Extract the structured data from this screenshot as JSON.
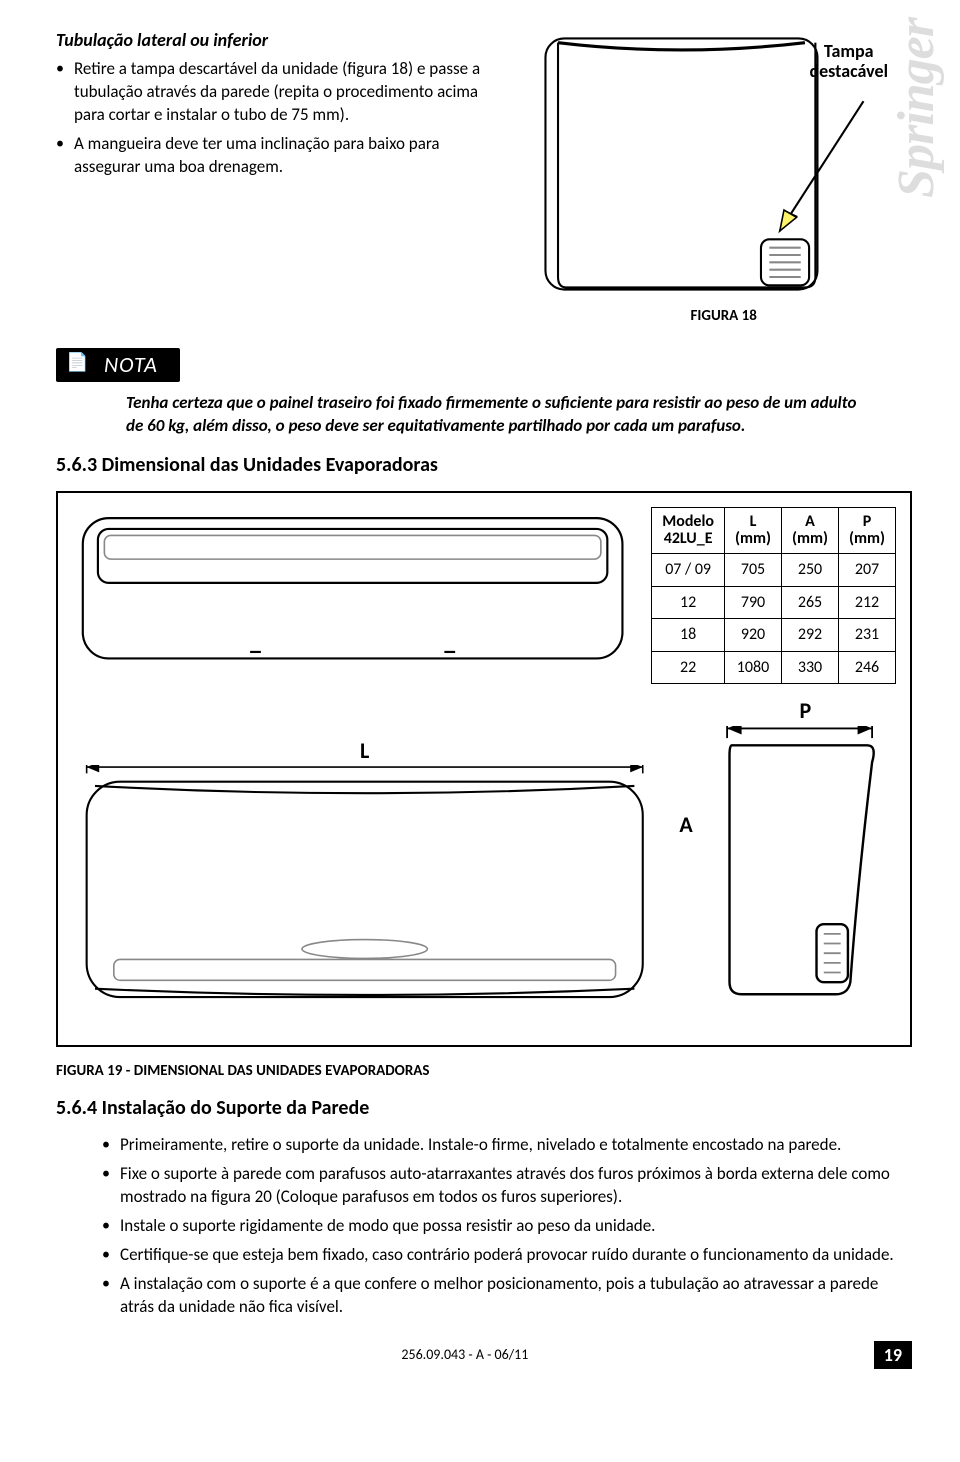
{
  "brand": "Springer",
  "section_title": "Tubulação lateral ou inferior",
  "bullets_top": [
    "Retire a tampa descartável da unidade (figura 18) e passe a tubulação através da parede (repita o procedimento acima para cortar e instalar o tubo de 75 mm).",
    "A mangueira deve ter uma inclinação para baixo para assegurar uma boa drenagem."
  ],
  "fig18": {
    "label": "Tampa\ndestacável",
    "caption": "FIGURA 18"
  },
  "nota": {
    "badge": "NOTA",
    "text": "Tenha certeza que o painel traseiro foi fixado firmemente o suficiente para resistir ao peso de um adulto de 60 kg, além disso, o peso deve ser equitativamente partilhado por cada um parafuso."
  },
  "hdr_563": "5.6.3  Dimensional das Unidades Evaporadoras",
  "table": {
    "headers": {
      "c0a": "Modelo",
      "c0b": "42LU_E",
      "c1a": "L",
      "c1b": "(mm)",
      "c2a": "A",
      "c2b": "(mm)",
      "c3a": "P",
      "c3b": "(mm)"
    },
    "rows": [
      [
        "07 / 09",
        "705",
        "250",
        "207"
      ],
      [
        "12",
        "790",
        "265",
        "212"
      ],
      [
        "18",
        "920",
        "292",
        "231"
      ],
      [
        "22",
        "1080",
        "330",
        "246"
      ]
    ]
  },
  "letters": {
    "L": "L",
    "P": "P",
    "A": "A"
  },
  "fig19_caption": "FIGURA 19 - DIMENSIONAL DAS UNIDADES EVAPORADORAS",
  "hdr_564": "5.6.4  Instalação do Suporte da Parede",
  "bullets_564": [
    "Primeiramente, retire o suporte da unidade. Instale-o firme, nivelado e totalmente encostado na parede.",
    "Fixe o suporte à parede com parafusos auto-atarraxantes através dos furos próximos à borda externa dele como mostrado na figura 20 (Coloque parafusos em todos os furos superiores).",
    "Instale o suporte rigidamente de modo que possa resistir ao peso da unidade.",
    "Certifique-se que esteja bem fixado, caso contrário poderá provocar ruído durante o funcionamento da unidade.",
    "A instalação com o suporte é a que confere o melhor posicionamento, pois a tubulação ao atravessar a parede atrás da unidade não fica visível."
  ],
  "footer": {
    "docnum": "256.09.043 - A - 06/11",
    "page": "19"
  },
  "colors": {
    "arrow_fill": "#fff36a",
    "arrow_stroke": "#000000",
    "grid_light": "#cfcfcf"
  }
}
